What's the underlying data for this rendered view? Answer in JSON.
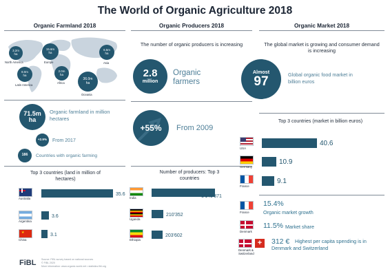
{
  "title": "The World of Organic Agriculture 2018",
  "columns": {
    "farmland": "Organic Farmland 2018",
    "producers": "Organic Producers 2018",
    "market": "Organic Market 2018"
  },
  "farmland": {
    "map": [
      {
        "value": "3.2m",
        "unit": "ha",
        "region": "North America"
      },
      {
        "value": "15.6m",
        "unit": "ha",
        "region": "Europe"
      },
      {
        "value": "6.5m",
        "unit": "ha",
        "region": "Asia"
      },
      {
        "value": "8.0m",
        "unit": "ha",
        "region": "Latin America"
      },
      {
        "value": "2.0m",
        "unit": "ha",
        "region": "Africa"
      },
      {
        "value": "36.0m",
        "unit": "ha",
        "region": "Oceania"
      }
    ],
    "total_value": "71.5m",
    "total_unit": "ha",
    "total_desc": "Organic farmland in million hectares",
    "growth_value": "+2.9%",
    "growth_desc": "From 2017",
    "countries_value": "186",
    "countries_desc": "Countries with organic farming",
    "top3_title": "Top 3 countries (land in million of hectares)",
    "top3": [
      {
        "country": "Australia",
        "value": "35.6",
        "num": 35.6
      },
      {
        "country": "Argentina",
        "value": "3.6",
        "num": 3.6
      },
      {
        "country": "China",
        "value": "3.1",
        "num": 3.1
      }
    ]
  },
  "producers": {
    "intro": "The number of organic producers is increasing",
    "count_value": "2.8",
    "count_unit": "million",
    "count_desc": "Organic farmers",
    "growth_value": "+55%",
    "growth_desc": "From 2009",
    "top3_title": "Number of producers: Top 3 countries",
    "top3": [
      {
        "country": "India",
        "value": "1'149'371",
        "num": 1149371
      },
      {
        "country": "Uganda",
        "value": "210'352",
        "num": 210352
      },
      {
        "country": "Ethiopia",
        "value": "203'602",
        "num": 203602
      }
    ]
  },
  "market": {
    "intro": "The global market is growing and consumer demand is increasing",
    "almost_label": "Almost",
    "almost_value": "97",
    "almost_desc": "Global organic food market in billion euros",
    "top3_title": "Top 3 countries (market in billion euros)",
    "top3": [
      {
        "country": "USA",
        "value": "40.6",
        "num": 40.6
      },
      {
        "country": "Germany",
        "value": "10.9",
        "num": 10.9
      },
      {
        "country": "France",
        "value": "9.1",
        "num": 9.1
      }
    ],
    "stats": [
      {
        "country": "France",
        "value": "15.4%",
        "desc": "Organic market growth"
      },
      {
        "country": "Denmark",
        "value": "11.5%",
        "desc": "Market share"
      },
      {
        "country": "Denmark & Switzerland",
        "value": "312 €",
        "desc": "Highest per capita spending is in Denmark and Switzerland"
      }
    ]
  },
  "footer": {
    "logo": "FiBL",
    "source": "Source: FiBL survey based on national sources",
    "copyright": "© FiBL 2020",
    "more": "More information: www.organic-world.net • statistics.fibl.org"
  },
  "colors": {
    "accent": "#24576f",
    "text_teal": "#4d7e97",
    "map": "#c9d4de"
  }
}
